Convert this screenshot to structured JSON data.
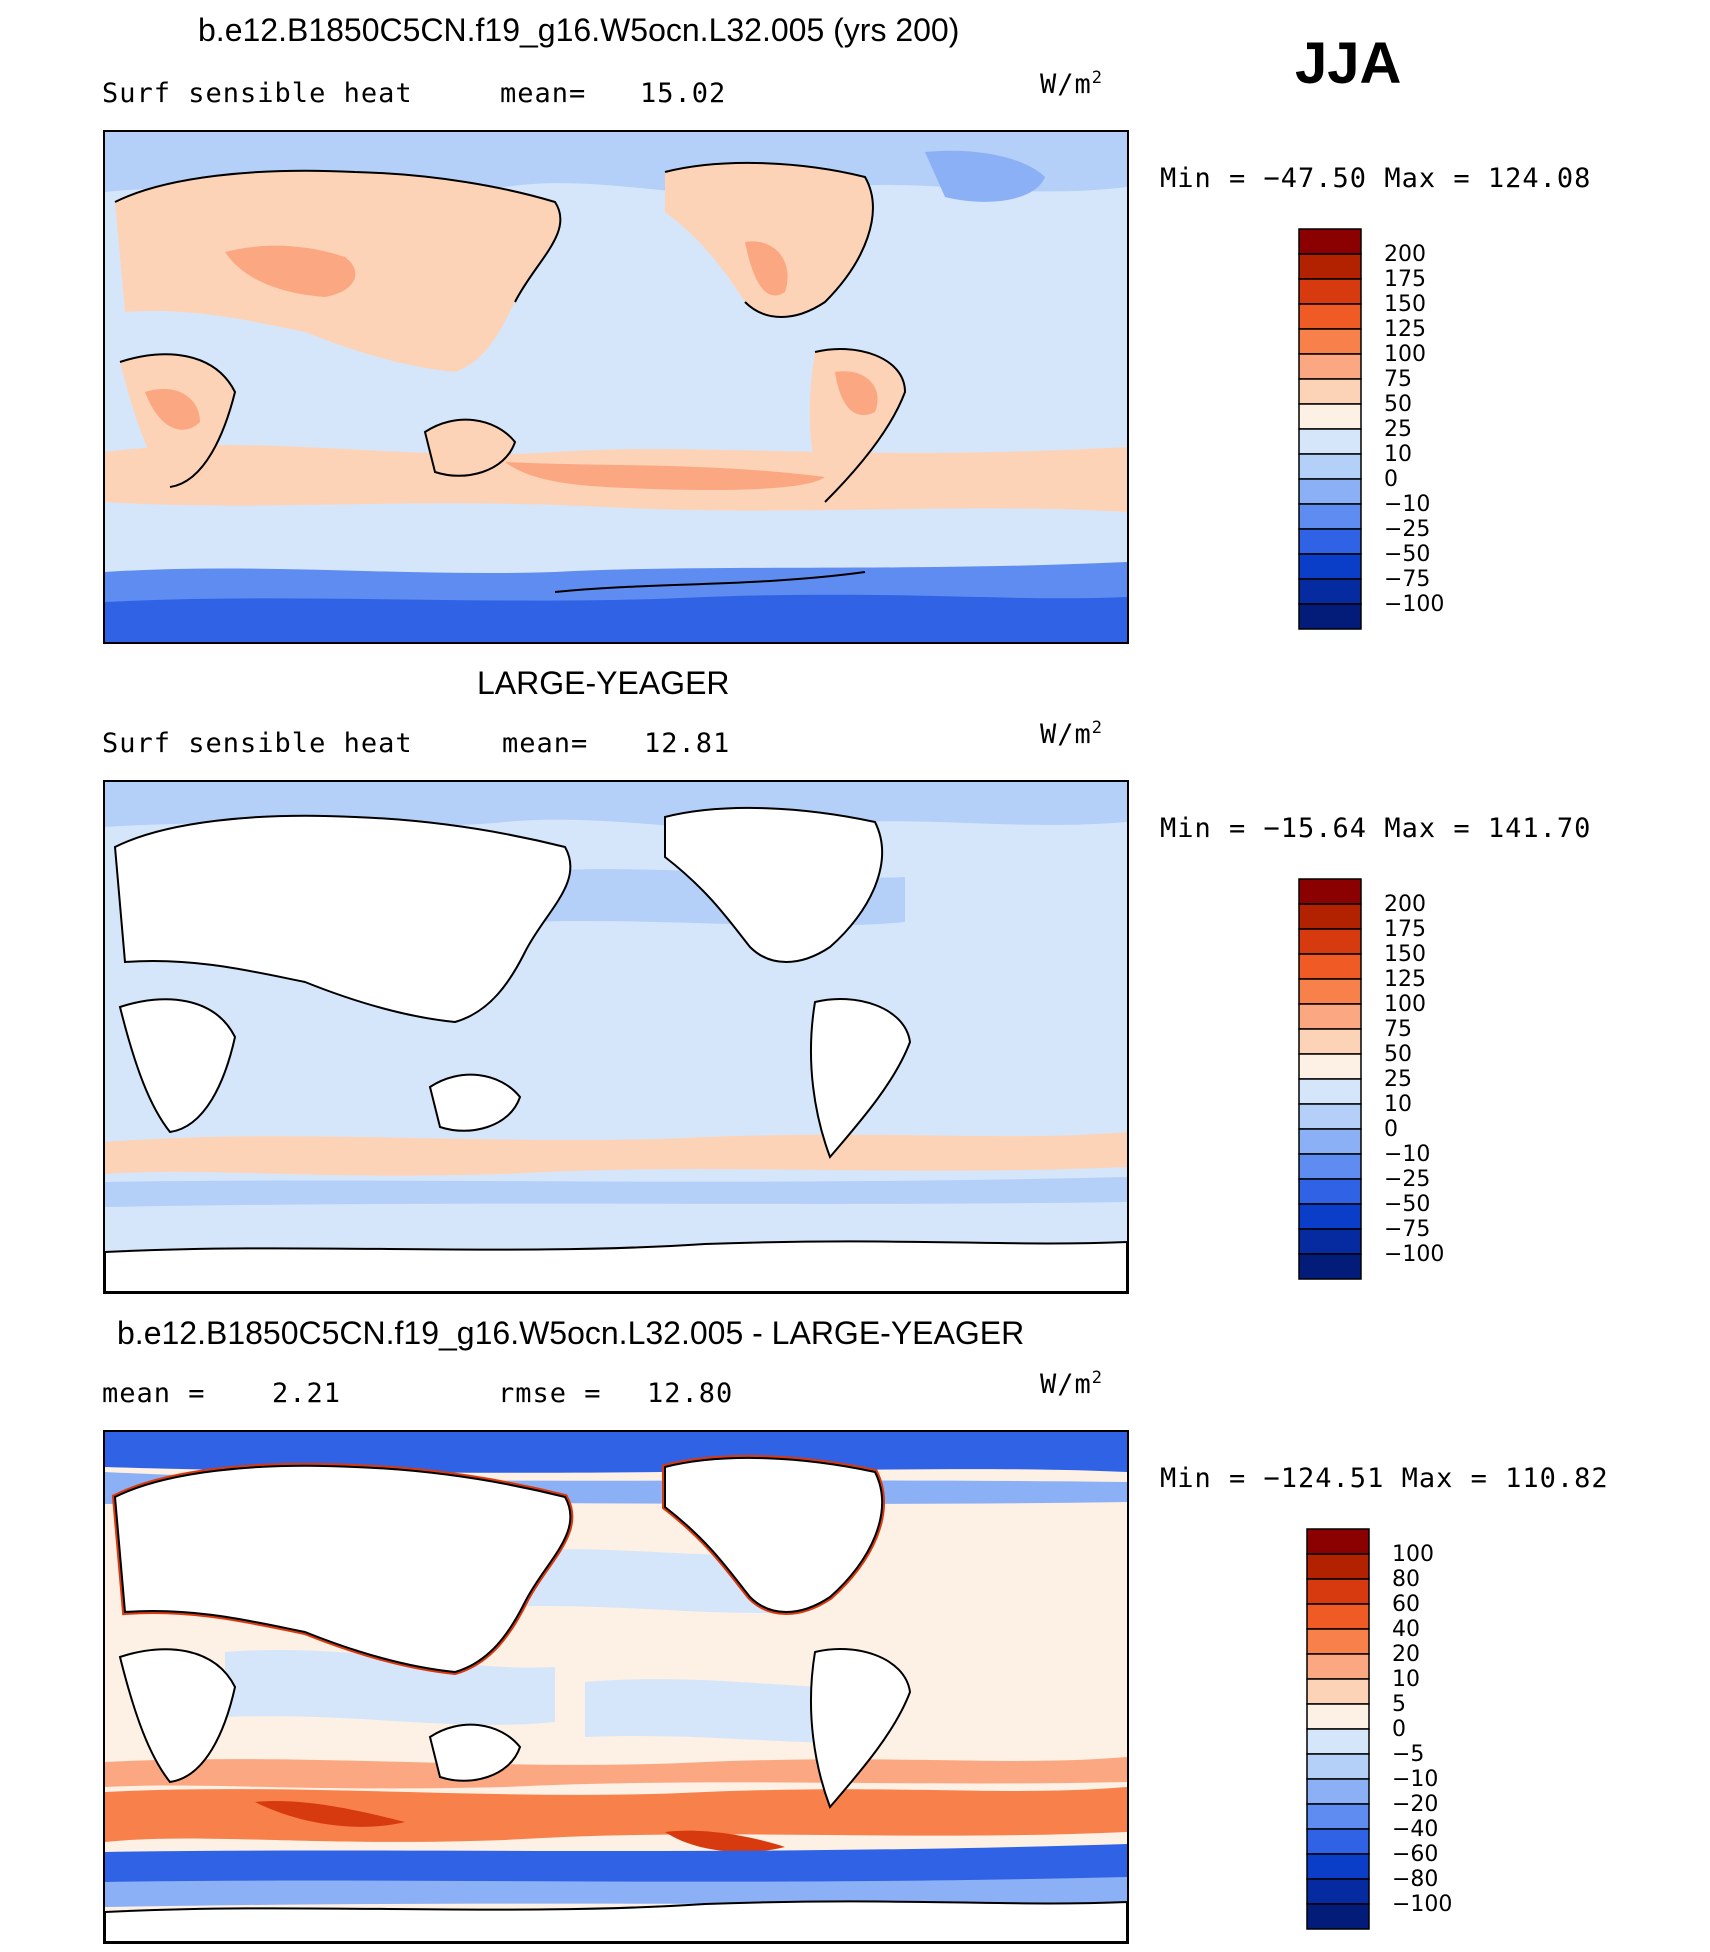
{
  "figure": {
    "season": "JJA",
    "units_base": "W/m",
    "units_sup": "2",
    "colors": {
      "land_white": "#ffffff",
      "ocean_light": "#d5e6fb",
      "coast": "#000000"
    }
  },
  "chart_data": [
    {
      "type": "heatmap",
      "panel": "model",
      "title": "b.e12.B1850C5CN.f19_g16.W5ocn.L32.005 (yrs 200)",
      "variable": "Surf  sensible  heat",
      "stat1_label": "mean=",
      "stat1_value": "15.02",
      "units": "W/m2",
      "min_label": "Min  =  −47.50  Max  =  124.08",
      "min": -47.5,
      "max": 124.08,
      "levels": [
        "200",
        "175",
        "150",
        "125",
        "100",
        "75",
        "50",
        "25",
        "10",
        "0",
        "−10",
        "−25",
        "−50",
        "−75",
        "−100"
      ],
      "colors": [
        "#8b0000",
        "#b22200",
        "#d83a10",
        "#f05a24",
        "#f8804a",
        "#fba882",
        "#fdd3b8",
        "#fdf0e4",
        "#d5e6fb",
        "#b4cff8",
        "#8cb0f5",
        "#5f8cf0",
        "#2f62e5",
        "#0b3ec8",
        "#062ba0",
        "#031c7a"
      ]
    },
    {
      "type": "heatmap",
      "panel": "obs",
      "title": "LARGE-YEAGER",
      "variable": "Surf  sensible  heat",
      "stat1_label": "mean=",
      "stat1_value": "12.81",
      "units": "W/m2",
      "min_label": "Min  =  −15.64  Max  =  141.70",
      "min": -15.64,
      "max": 141.7,
      "levels": [
        "200",
        "175",
        "150",
        "125",
        "100",
        "75",
        "50",
        "25",
        "10",
        "0",
        "−10",
        "−25",
        "−50",
        "−75",
        "−100"
      ],
      "colors": [
        "#8b0000",
        "#b22200",
        "#d83a10",
        "#f05a24",
        "#f8804a",
        "#fba882",
        "#fdd3b8",
        "#fdf0e4",
        "#d5e6fb",
        "#b4cff8",
        "#8cb0f5",
        "#5f8cf0",
        "#2f62e5",
        "#0b3ec8",
        "#062ba0",
        "#031c7a"
      ]
    },
    {
      "type": "heatmap",
      "panel": "diff",
      "title": "b.e12.B1850C5CN.f19_g16.W5ocn.L32.005 - LARGE-YEAGER",
      "stat1_label": "mean =",
      "stat1_value": "2.21",
      "stat2_label": "rmse =",
      "stat2_value": "12.80",
      "units": "W/m2",
      "min_label": "Min  =  −124.51  Max  =  110.82",
      "min": -124.51,
      "max": 110.82,
      "levels": [
        "100",
        "80",
        "60",
        "40",
        "20",
        "10",
        "5",
        "0",
        "−5",
        "−10",
        "−20",
        "−40",
        "−60",
        "−80",
        "−100"
      ],
      "colors": [
        "#8b0000",
        "#b22200",
        "#d83a10",
        "#f05a24",
        "#f8804a",
        "#fba882",
        "#fdd3b8",
        "#fdf0e4",
        "#d5e6fb",
        "#b4cff8",
        "#8cb0f5",
        "#5f8cf0",
        "#2f62e5",
        "#0b3ec8",
        "#062ba0",
        "#031c7a"
      ]
    }
  ]
}
